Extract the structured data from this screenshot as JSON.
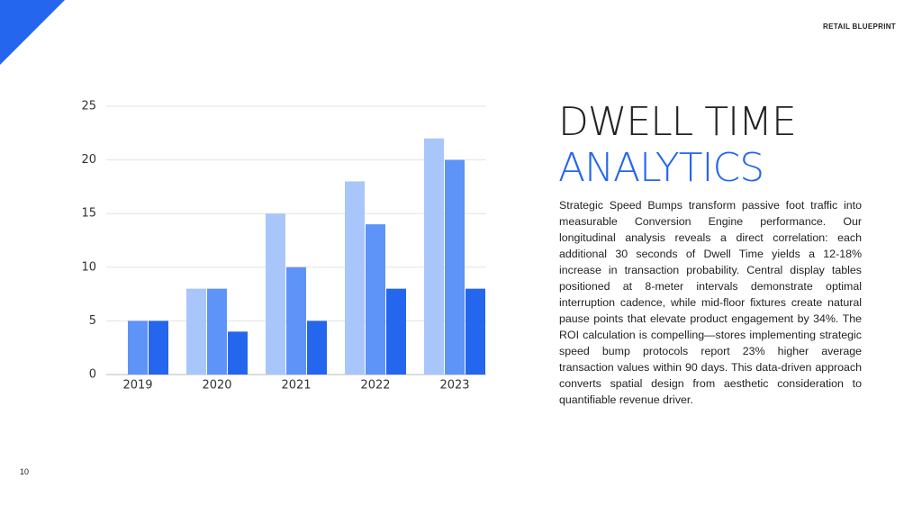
{
  "brand": "RETAIL BLUEPRINT",
  "page_number": "10",
  "title": {
    "line1": "DWELL TIME",
    "line2": "ANALYTICS"
  },
  "body": "Strategic Speed Bumps transform passive foot traffic into measurable Conversion Engine performance. Our longitudinal analysis reveals a direct correlation: each additional 30 seconds of Dwell Time yields a 12-18% increase in transaction probability. Central display tables positioned at 8-meter intervals demonstrate optimal interruption cadence, while mid-floor fixtures create natural pause points that elevate product engagement by 34%. The ROI calculation is compelling—stores implementing strategic speed bump protocols report 23% higher average transaction values within 90 days. This data-driven approach converts spatial design from aesthetic consideration to quantifiable revenue driver.",
  "chart_data": {
    "type": "bar",
    "categories": [
      "2019",
      "2020",
      "2021",
      "2022",
      "2023"
    ],
    "series": [
      {
        "color": "#a9c6fb",
        "values": [
          null,
          8,
          15,
          18,
          22
        ]
      },
      {
        "color": "#5e93f8",
        "values": [
          5,
          8,
          10,
          14,
          20
        ]
      },
      {
        "color": "#2566ef",
        "values": [
          5,
          4,
          5,
          8,
          8
        ]
      }
    ],
    "ylim": [
      0,
      25
    ],
    "yticks": [
      0,
      5,
      10,
      15,
      20,
      25
    ],
    "grid": true
  }
}
